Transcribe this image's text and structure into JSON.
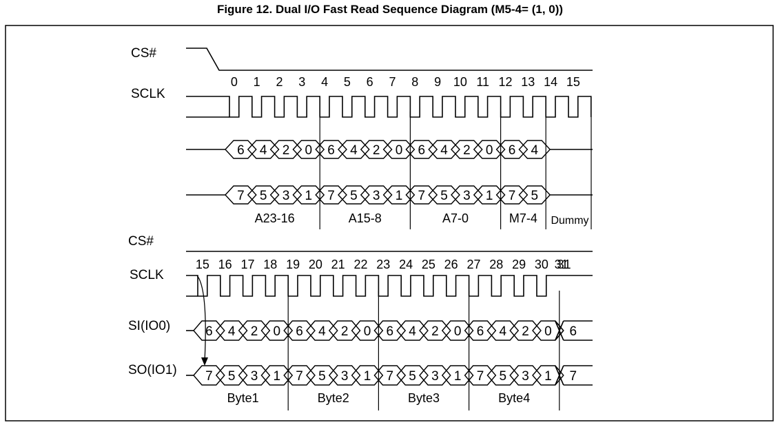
{
  "title": "Figure 12. Dual I/O Fast Read Sequence Diagram (M5-4= (1, 0))",
  "top": {
    "cs_label": "CS#",
    "sclk_label": "SCLK",
    "clock_numbers": [
      "0",
      "1",
      "2",
      "3",
      "4",
      "5",
      "6",
      "7",
      "8",
      "9",
      "10",
      "11",
      "12",
      "13",
      "14",
      "15"
    ],
    "io0_values": [
      "6",
      "4",
      "2",
      "0",
      "6",
      "4",
      "2",
      "0",
      "6",
      "4",
      "2",
      "0",
      "6",
      "4"
    ],
    "io1_values": [
      "7",
      "5",
      "3",
      "1",
      "7",
      "5",
      "3",
      "1",
      "7",
      "5",
      "3",
      "1",
      "7",
      "5"
    ],
    "groups": [
      "A23-16",
      "A15-8",
      "A7-0",
      "M7-4",
      "Dummy"
    ]
  },
  "bottom": {
    "cs_label": "CS#",
    "sclk_label": "SCLK",
    "si_label": "SI(IO0)",
    "so_label": "SO(IO1)",
    "clock_numbers": [
      "15",
      "16",
      "17",
      "18",
      "19",
      "20",
      "21",
      "22",
      "23",
      "24",
      "25",
      "26",
      "27",
      "28",
      "29",
      "30",
      "31"
    ],
    "si_values": [
      "6",
      "4",
      "2",
      "0",
      "6",
      "4",
      "2",
      "0",
      "6",
      "4",
      "2",
      "0",
      "6",
      "4",
      "2",
      "0"
    ],
    "so_values": [
      "7",
      "5",
      "3",
      "1",
      "7",
      "5",
      "3",
      "1",
      "7",
      "5",
      "3",
      "1",
      "7",
      "5",
      "3",
      "1"
    ],
    "si_next": "6",
    "so_next": "7",
    "groups": [
      "Byte1",
      "Byte2",
      "Byte3",
      "Byte4"
    ]
  }
}
